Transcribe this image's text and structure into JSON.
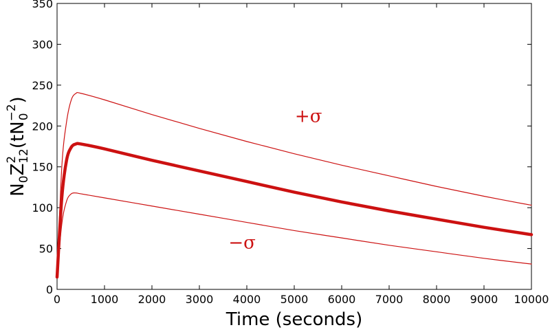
{
  "chart_data": {
    "type": "line",
    "title": "",
    "xlabel": "Time (seconds)",
    "ylabel": {
      "base": "N",
      "base_sub": "0",
      "var": "Z",
      "var_sup": "2",
      "var_sub": "12",
      "open": "(tN",
      "inner_sub": "0",
      "inner_sup": "−2",
      "close": ")"
    },
    "xlim": [
      0,
      10000
    ],
    "ylim": [
      0,
      350
    ],
    "xticks": [
      0,
      1000,
      2000,
      3000,
      4000,
      5000,
      6000,
      7000,
      8000,
      9000,
      10000
    ],
    "yticks": [
      0,
      50,
      100,
      150,
      200,
      250,
      300,
      350
    ],
    "grid": false,
    "line_color": "#cc1111",
    "annotations": [
      {
        "text": "+σ",
        "x": 5300,
        "y": 205
      },
      {
        "text": "−σ",
        "x": 3900,
        "y": 50
      }
    ],
    "series": [
      {
        "role": "upper",
        "line_width": 1.2,
        "x": [
          0,
          100,
          200,
          300,
          400,
          500,
          1000,
          2000,
          3000,
          4000,
          5000,
          6000,
          7000,
          8000,
          9000,
          10000
        ],
        "y": [
          15,
          150,
          205,
          232,
          240,
          240,
          232,
          214,
          197,
          181,
          166,
          152,
          139,
          126,
          114,
          103
        ]
      },
      {
        "role": "mean",
        "line_width": 4.5,
        "x": [
          0,
          100,
          200,
          300,
          400,
          500,
          1000,
          2000,
          3000,
          4000,
          5000,
          6000,
          7000,
          8000,
          9000,
          10000
        ],
        "y": [
          15,
          112,
          158,
          174,
          178,
          178,
          172,
          158,
          145,
          132,
          119,
          107,
          96,
          86,
          76,
          67
        ]
      },
      {
        "role": "lower",
        "line_width": 1.2,
        "x": [
          0,
          100,
          200,
          300,
          400,
          500,
          1000,
          2000,
          3000,
          4000,
          5000,
          6000,
          7000,
          8000,
          9000,
          10000
        ],
        "y": [
          15,
          80,
          108,
          117,
          118,
          117,
          112,
          102,
          92,
          82,
          72,
          63,
          54,
          46,
          38,
          31
        ]
      }
    ]
  }
}
